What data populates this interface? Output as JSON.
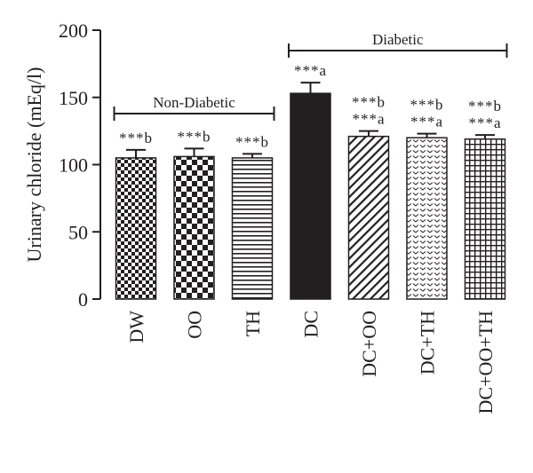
{
  "chart_data": {
    "type": "bar",
    "title": "",
    "xlabel": "",
    "ylabel": "Urinary chloride (mEq/l)",
    "ylim": [
      0,
      200
    ],
    "yticks": [
      0,
      50,
      100,
      150,
      200
    ],
    "grid": false,
    "categories": [
      "DW",
      "OO",
      "TH",
      "DC",
      "DC+OO",
      "DC+TH",
      "DC+OO+TH"
    ],
    "values": [
      105,
      106,
      105,
      153,
      121,
      120,
      119
    ],
    "errors": [
      6,
      6,
      3,
      8,
      4,
      3,
      3
    ],
    "patterns": [
      "checker-small",
      "checker-large",
      "horizontal-lines",
      "solid-black",
      "diagonal-lines",
      "chevron-dots",
      "grid"
    ],
    "annotations": [
      [
        "***b"
      ],
      [
        "***b"
      ],
      [
        "***b"
      ],
      [
        "***a"
      ],
      [
        "***b",
        "***a"
      ],
      [
        "***b",
        "***a"
      ],
      [
        "***b",
        "***a"
      ]
    ],
    "groups": [
      {
        "label": "Non-Diabetic",
        "from": 0,
        "to": 2
      },
      {
        "label": "Diabetic",
        "from": 3,
        "to": 6
      }
    ]
  }
}
